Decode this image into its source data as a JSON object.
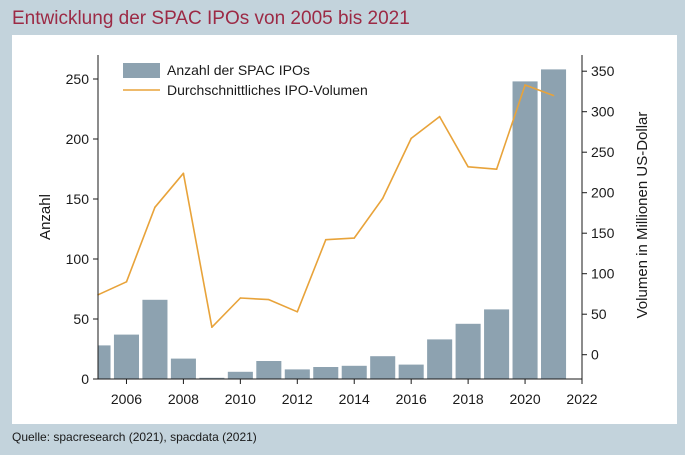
{
  "title": "Entwicklung der SPAC IPOs von 2005 bis 2021",
  "source": "Quelle: spacresearch (2021), spacdata (2021)",
  "colors": {
    "bar": "#8da2b0",
    "line": "#e8a33a",
    "title": "#9c2a45"
  },
  "chart_data": {
    "type": "bar+line",
    "x_ticks": [
      2006,
      2008,
      2010,
      2012,
      2014,
      2016,
      2018,
      2020,
      2022
    ],
    "xlim": [
      2005,
      2022
    ],
    "ylabel": "Anzahl",
    "y_ticks": [
      0,
      50,
      100,
      150,
      200,
      250
    ],
    "ylim": [
      0,
      270
    ],
    "y2label": "Volumen in Millionen US-Dollar",
    "y2_ticks": [
      0,
      50,
      100,
      150,
      200,
      250,
      300,
      350
    ],
    "y2lim": [
      -30,
      370
    ],
    "legend_position": "top-left",
    "series": [
      {
        "name": "Anzahl der SPAC IPOs",
        "type": "bar",
        "axis": "left",
        "x": [
          2005,
          2006,
          2007,
          2008,
          2009,
          2010,
          2011,
          2012,
          2013,
          2014,
          2015,
          2016,
          2017,
          2018,
          2019,
          2020,
          2021
        ],
        "values": [
          28,
          37,
          66,
          17,
          1,
          6,
          15,
          8,
          10,
          11,
          19,
          12,
          33,
          46,
          58,
          248,
          258
        ]
      },
      {
        "name": "Durchschnittliches IPO-Volumen",
        "type": "line",
        "axis": "right",
        "x": [
          2005,
          2006,
          2007,
          2008,
          2009,
          2010,
          2011,
          2012,
          2013,
          2014,
          2015,
          2016,
          2017,
          2018,
          2019,
          2020,
          2021
        ],
        "values": [
          74,
          90,
          182,
          224,
          34,
          70,
          68,
          53,
          142,
          144,
          193,
          267,
          294,
          232,
          229,
          333,
          320
        ]
      }
    ]
  }
}
